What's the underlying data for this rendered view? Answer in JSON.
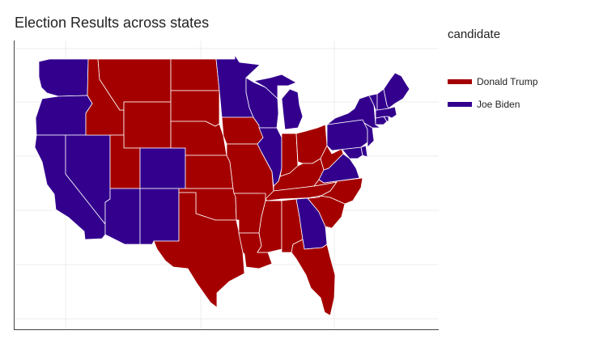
{
  "title": "Election Results across states",
  "legend": {
    "title": "candidate",
    "items": [
      {
        "label": "Donald Trump",
        "color": "#a50000"
      },
      {
        "label": "Joe Biden",
        "color": "#33008e"
      }
    ]
  },
  "results": {
    "WA": "Joe Biden",
    "OR": "Joe Biden",
    "CA": "Joe Biden",
    "NV": "Joe Biden",
    "ID": "Donald Trump",
    "MT": "Donald Trump",
    "WY": "Donald Trump",
    "UT": "Donald Trump",
    "AZ": "Joe Biden",
    "CO": "Joe Biden",
    "NM": "Joe Biden",
    "ND": "Donald Trump",
    "SD": "Donald Trump",
    "NE": "Donald Trump",
    "KS": "Donald Trump",
    "OK": "Donald Trump",
    "TX": "Donald Trump",
    "MN": "Joe Biden",
    "IA": "Donald Trump",
    "MO": "Donald Trump",
    "AR": "Donald Trump",
    "LA": "Donald Trump",
    "WI": "Joe Biden",
    "IL": "Joe Biden",
    "MI": "Joe Biden",
    "IN": "Donald Trump",
    "OH": "Donald Trump",
    "KY": "Donald Trump",
    "TN": "Donald Trump",
    "MS": "Donald Trump",
    "AL": "Donald Trump",
    "GA": "Joe Biden",
    "FL": "Donald Trump",
    "SC": "Donald Trump",
    "NC": "Donald Trump",
    "VA": "Joe Biden",
    "WV": "Donald Trump",
    "PA": "Joe Biden",
    "NY": "Joe Biden",
    "ME": "Joe Biden",
    "NH": "Joe Biden",
    "VT": "Joe Biden",
    "MA": "Joe Biden",
    "CT": "Joe Biden",
    "RI": "Joe Biden",
    "NJ": "Joe Biden",
    "DE": "Joe Biden",
    "MD": "Joe Biden"
  },
  "colors": {
    "gridline": "#ececec",
    "state_border": "#ffffff"
  }
}
